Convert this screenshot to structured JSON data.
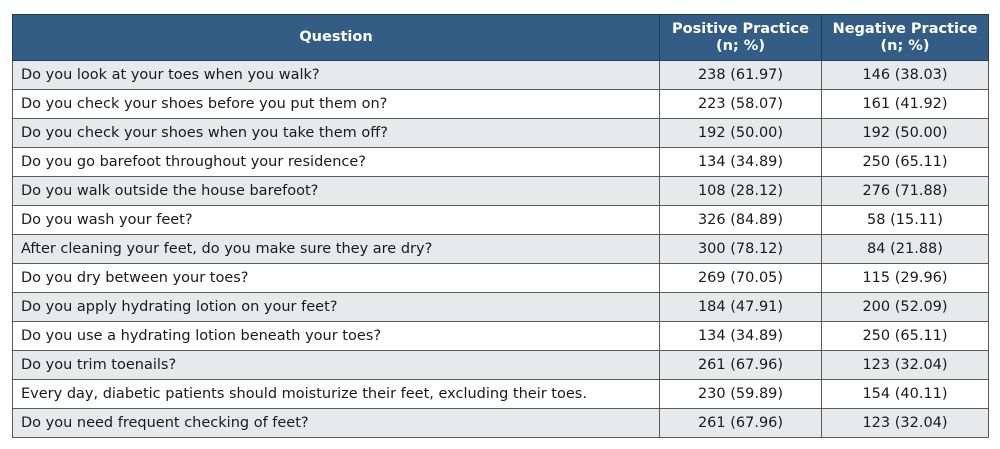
{
  "table": {
    "headers": {
      "question": "Question",
      "positive_title": "Positive Practice",
      "positive_sub": "(n; %)",
      "negative_title": "Negative Practice",
      "negative_sub": "(n; %)"
    },
    "rows": [
      {
        "question": "Do you look at your toes when you walk?",
        "positive": "238 (61.97)",
        "negative": "146 (38.03)"
      },
      {
        "question": "Do you check your shoes before you put them on?",
        "positive": "223 (58.07)",
        "negative": "161 (41.92)"
      },
      {
        "question": "Do you check your shoes when you take them off?",
        "positive": "192 (50.00)",
        "negative": "192 (50.00)"
      },
      {
        "question": "Do you go barefoot throughout your residence?",
        "positive": "134 (34.89)",
        "negative": "250 (65.11)"
      },
      {
        "question": "Do you walk outside the house barefoot?",
        "positive": "108 (28.12)",
        "negative": "276 (71.88)"
      },
      {
        "question": "Do you wash your feet?",
        "positive": "326 (84.89)",
        "negative": "58 (15.11)"
      },
      {
        "question": "After cleaning your feet, do you make sure they are dry?",
        "positive": "300 (78.12)",
        "negative": "84 (21.88)"
      },
      {
        "question": "Do you dry between your toes?",
        "positive": "269 (70.05)",
        "negative": "115 (29.96)"
      },
      {
        "question": "Do you apply hydrating lotion on your feet?",
        "positive": "184 (47.91)",
        "negative": "200 (52.09)"
      },
      {
        "question": "Do you use a hydrating lotion beneath your toes?",
        "positive": "134 (34.89)",
        "negative": "250 (65.11)"
      },
      {
        "question": "Do you trim toenails?",
        "positive": "261 (67.96)",
        "negative": "123 (32.04)"
      },
      {
        "question": "Every day, diabetic patients should moisturize their feet, excluding their toes.",
        "positive": "230 (59.89)",
        "negative": "154 (40.11)"
      },
      {
        "question": "Do you need frequent checking of feet?",
        "positive": "261 (67.96)",
        "negative": "123 (32.04)"
      }
    ]
  },
  "colors": {
    "header_bg": "#335d84",
    "header_text": "#ffffff",
    "row_alt_bg": "#e8e9eb",
    "row_bg": "#ffffff"
  }
}
